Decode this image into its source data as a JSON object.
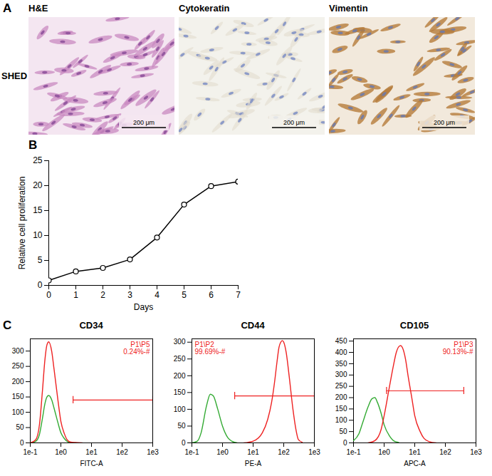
{
  "panel_A": {
    "letter": "A",
    "row_label": "SHED",
    "images": [
      {
        "title": "H&E",
        "scale_bar": "200 μm"
      },
      {
        "title": "Cytokeratin",
        "scale_bar": "200 μm"
      },
      {
        "title": "Vimentin",
        "scale_bar": "200 μm"
      }
    ]
  },
  "chart_data": [
    {
      "letter": "B",
      "type": "line",
      "x": [
        0,
        1,
        2,
        3,
        4,
        5,
        6,
        7
      ],
      "values": [
        1,
        2.8,
        3.5,
        5.2,
        9.6,
        16.2,
        19.9,
        20.8
      ],
      "errors": [
        0.1,
        0.15,
        0.1,
        0.4,
        0.2,
        0.2,
        0.5,
        0.4
      ],
      "color": "#000000",
      "marker": "circle",
      "xlabel": "Days",
      "ylabel": "Relative cell proliferation",
      "xlim": [
        0,
        7
      ],
      "ylim": [
        0,
        25
      ],
      "xticks": [
        0,
        1,
        2,
        3,
        4,
        5,
        6,
        7
      ],
      "yticks": [
        0,
        5,
        10,
        15,
        20,
        25
      ]
    },
    {
      "letter": "C",
      "title": "CD34",
      "type": "line",
      "log": "x",
      "xlabel": "FITC-A",
      "xlim": [
        0.1,
        1000
      ],
      "ylim": [
        0,
        340
      ],
      "xticks": [
        {
          "value": 0.1,
          "label": "1e-1"
        },
        {
          "value": 1,
          "label": "1e0"
        },
        {
          "value": 10,
          "label": "1e1"
        },
        {
          "value": 100,
          "label": "1e2"
        },
        {
          "value": 1000,
          "label": "1e3"
        }
      ],
      "yticks": [
        0,
        50,
        100,
        150,
        200,
        250,
        300
      ],
      "series": [
        {
          "color": "#33aa33",
          "x": [
            0.1,
            0.15,
            0.2,
            0.25,
            0.3,
            0.35,
            0.4,
            0.5,
            0.6,
            0.8,
            1,
            1.3,
            1.6,
            2,
            3
          ],
          "values": [
            0,
            5,
            28,
            80,
            127,
            150,
            155,
            141,
            113,
            66,
            33,
            14,
            5,
            1,
            0
          ]
        },
        {
          "color": "#ee2222",
          "x": [
            0.1,
            0.15,
            0.2,
            0.25,
            0.3,
            0.35,
            0.4,
            0.5,
            0.6,
            0.8,
            1,
            1.3,
            1.6,
            2,
            3,
            5
          ],
          "values": [
            0,
            10,
            60,
            170,
            270,
            320,
            330,
            300,
            240,
            140,
            70,
            30,
            10,
            3,
            1,
            0
          ]
        }
      ],
      "gate": {
        "x": [
          2.5,
          1000
        ],
        "y": 140,
        "label": [
          "P1\\P5",
          "0.24%-#"
        ]
      }
    },
    {
      "title": "CD44",
      "type": "line",
      "log": "x",
      "xlabel": "PE-A",
      "xlim": [
        0.1,
        1000
      ],
      "ylim": [
        0,
        310
      ],
      "xticks": [
        {
          "value": 0.1,
          "label": "1e-1"
        },
        {
          "value": 1,
          "label": "1e0"
        },
        {
          "value": 10,
          "label": "1e1"
        },
        {
          "value": 100,
          "label": "1e2"
        },
        {
          "value": 1000,
          "label": "1e3"
        }
      ],
      "yticks": [
        0,
        50,
        100,
        150,
        200,
        250,
        300
      ],
      "series": [
        {
          "color": "#33aa33",
          "x": [
            0.1,
            0.15,
            0.2,
            0.3,
            0.4,
            0.5,
            0.7,
            1,
            1.5,
            2,
            3
          ],
          "values": [
            0,
            5,
            30,
            110,
            145,
            140,
            100,
            50,
            15,
            5,
            0
          ]
        },
        {
          "color": "#ee2222",
          "x": [
            5,
            10,
            20,
            30,
            40,
            50,
            60,
            70,
            80,
            90,
            100,
            120,
            150,
            200,
            250,
            300,
            400
          ],
          "values": [
            0,
            5,
            30,
            70,
            120,
            180,
            240,
            285,
            300,
            305,
            300,
            270,
            200,
            100,
            40,
            10,
            2
          ]
        }
      ],
      "gate": {
        "x": [
          2.5,
          1000
        ],
        "y": 140,
        "label": [
          "P1\\P2",
          "99.69%-#"
        ]
      }
    },
    {
      "title": "CD105",
      "type": "line",
      "log": "x",
      "xlabel": "APC-A",
      "xlim": [
        0.1,
        1000
      ],
      "ylim": [
        0,
        460
      ],
      "xticks": [
        {
          "value": 0.1,
          "label": "1e-1"
        },
        {
          "value": 1,
          "label": "1e0"
        },
        {
          "value": 10,
          "label": "1e1"
        },
        {
          "value": 100,
          "label": "1e2"
        },
        {
          "value": 1000,
          "label": "1e3"
        }
      ],
      "yticks": [
        0,
        50,
        100,
        150,
        200,
        250,
        300,
        350,
        400,
        450
      ],
      "series": [
        {
          "color": "#33aa33",
          "x": [
            0.1,
            0.15,
            0.2,
            0.3,
            0.4,
            0.5,
            0.6,
            0.8,
            1,
            1.5,
            2,
            3
          ],
          "values": [
            10,
            40,
            90,
            160,
            195,
            200,
            180,
            130,
            80,
            30,
            10,
            2
          ]
        },
        {
          "color": "#ee2222",
          "x": [
            0.3,
            0.5,
            0.8,
            1,
            1.5,
            2,
            2.5,
            3,
            3.5,
            4,
            5,
            6,
            8,
            10,
            15,
            20,
            30,
            50
          ],
          "values": [
            0,
            10,
            60,
            120,
            250,
            340,
            400,
            425,
            430,
            420,
            370,
            300,
            200,
            120,
            50,
            20,
            5,
            0
          ]
        }
      ],
      "gate": {
        "x": [
          1.2,
          400
        ],
        "y": 230,
        "label": [
          "P1\\P3",
          "90.13%-#"
        ]
      }
    }
  ]
}
